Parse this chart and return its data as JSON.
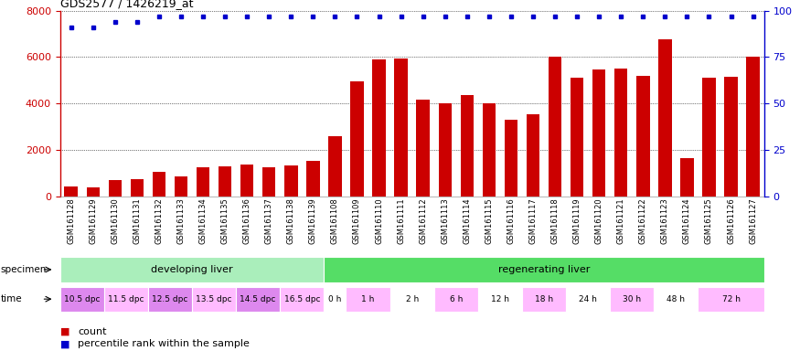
{
  "title": "GDS2577 / 1426219_at",
  "samples": [
    "GSM161128",
    "GSM161129",
    "GSM161130",
    "GSM161131",
    "GSM161132",
    "GSM161133",
    "GSM161134",
    "GSM161135",
    "GSM161136",
    "GSM161137",
    "GSM161138",
    "GSM161139",
    "GSM161108",
    "GSM161109",
    "GSM161110",
    "GSM161111",
    "GSM161112",
    "GSM161113",
    "GSM161114",
    "GSM161115",
    "GSM161116",
    "GSM161117",
    "GSM161118",
    "GSM161119",
    "GSM161120",
    "GSM161121",
    "GSM161122",
    "GSM161123",
    "GSM161124",
    "GSM161125",
    "GSM161126",
    "GSM161127"
  ],
  "counts": [
    450,
    410,
    700,
    730,
    1050,
    870,
    1270,
    1290,
    1380,
    1270,
    1340,
    1530,
    2600,
    4950,
    5900,
    5950,
    4150,
    4000,
    4350,
    4000,
    3300,
    3550,
    6000,
    5100,
    5450,
    5500,
    5200,
    6750,
    1650,
    5100,
    5150,
    6000
  ],
  "percentiles": [
    91,
    91,
    94,
    94,
    97,
    97,
    97,
    97,
    97,
    97,
    97,
    97,
    97,
    97,
    97,
    97,
    97,
    97,
    97,
    97,
    97,
    97,
    97,
    97,
    97,
    97,
    97,
    97,
    97,
    97,
    97,
    97
  ],
  "ylim_left": [
    0,
    8000
  ],
  "ylim_right": [
    0,
    100
  ],
  "yticks_left": [
    0,
    2000,
    4000,
    6000,
    8000
  ],
  "yticks_right": [
    0,
    25,
    50,
    75,
    100
  ],
  "bar_color": "#cc0000",
  "dot_color": "#0000cc",
  "specimen_groups": [
    {
      "label": "developing liver",
      "start": 0,
      "end": 12,
      "color": "#aaeebb"
    },
    {
      "label": "regenerating liver",
      "start": 12,
      "end": 32,
      "color": "#55dd66"
    }
  ],
  "time_labels": [
    {
      "label": "10.5 dpc",
      "start": 0,
      "end": 2,
      "color": "#dd88ee"
    },
    {
      "label": "11.5 dpc",
      "start": 2,
      "end": 4,
      "color": "#ffbbff"
    },
    {
      "label": "12.5 dpc",
      "start": 4,
      "end": 6,
      "color": "#dd88ee"
    },
    {
      "label": "13.5 dpc",
      "start": 6,
      "end": 8,
      "color": "#ffbbff"
    },
    {
      "label": "14.5 dpc",
      "start": 8,
      "end": 10,
      "color": "#dd88ee"
    },
    {
      "label": "16.5 dpc",
      "start": 10,
      "end": 12,
      "color": "#ffbbff"
    },
    {
      "label": "0 h",
      "start": 12,
      "end": 13,
      "color": "#ffffff"
    },
    {
      "label": "1 h",
      "start": 13,
      "end": 15,
      "color": "#ffbbff"
    },
    {
      "label": "2 h",
      "start": 15,
      "end": 17,
      "color": "#ffffff"
    },
    {
      "label": "6 h",
      "start": 17,
      "end": 19,
      "color": "#ffbbff"
    },
    {
      "label": "12 h",
      "start": 19,
      "end": 21,
      "color": "#ffffff"
    },
    {
      "label": "18 h",
      "start": 21,
      "end": 23,
      "color": "#ffbbff"
    },
    {
      "label": "24 h",
      "start": 23,
      "end": 25,
      "color": "#ffffff"
    },
    {
      "label": "30 h",
      "start": 25,
      "end": 27,
      "color": "#ffbbff"
    },
    {
      "label": "48 h",
      "start": 27,
      "end": 29,
      "color": "#ffffff"
    },
    {
      "label": "72 h",
      "start": 29,
      "end": 32,
      "color": "#ffbbff"
    }
  ],
  "legend_items": [
    {
      "color": "#cc0000",
      "label": "count"
    },
    {
      "color": "#0000cc",
      "label": "percentile rank within the sample"
    }
  ]
}
